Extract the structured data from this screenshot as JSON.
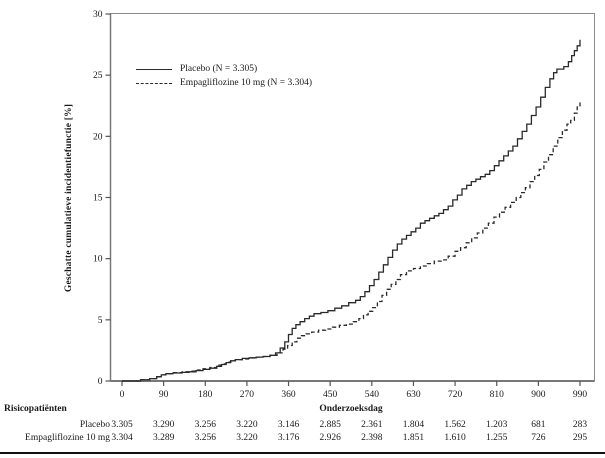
{
  "chart_data": {
    "type": "line",
    "subtype": "kaplan-meier-step",
    "title": "",
    "xlabel": "Onderzoeksdag",
    "ylabel": "Geschatte cumulatieve incidentiefunctie [%]",
    "xlim": [
      0,
      990
    ],
    "ylim": [
      0,
      30
    ],
    "xticks": [
      0,
      90,
      180,
      270,
      360,
      450,
      540,
      630,
      720,
      810,
      900,
      990
    ],
    "yticks": [
      0,
      5,
      10,
      15,
      20,
      25,
      30
    ],
    "grid": false,
    "legend_position": "inside-top-left",
    "series": [
      {
        "id": "placebo-curve",
        "name": "Placebo (N = 3.305)",
        "style": "solid",
        "points": [
          [
            0,
            0
          ],
          [
            40,
            0.1
          ],
          [
            60,
            0.2
          ],
          [
            75,
            0.35
          ],
          [
            85,
            0.5
          ],
          [
            95,
            0.6
          ],
          [
            110,
            0.65
          ],
          [
            130,
            0.7
          ],
          [
            145,
            0.75
          ],
          [
            160,
            0.85
          ],
          [
            175,
            0.95
          ],
          [
            190,
            1.05
          ],
          [
            205,
            1.2
          ],
          [
            215,
            1.35
          ],
          [
            225,
            1.5
          ],
          [
            235,
            1.65
          ],
          [
            245,
            1.75
          ],
          [
            260,
            1.85
          ],
          [
            275,
            1.9
          ],
          [
            290,
            1.95
          ],
          [
            305,
            2.0
          ],
          [
            320,
            2.1
          ],
          [
            332,
            2.3
          ],
          [
            342,
            2.7
          ],
          [
            352,
            3.2
          ],
          [
            360,
            3.8
          ],
          [
            368,
            4.3
          ],
          [
            376,
            4.6
          ],
          [
            385,
            4.85
          ],
          [
            395,
            5.1
          ],
          [
            405,
            5.3
          ],
          [
            415,
            5.5
          ],
          [
            430,
            5.6
          ],
          [
            445,
            5.75
          ],
          [
            460,
            5.95
          ],
          [
            475,
            6.15
          ],
          [
            490,
            6.4
          ],
          [
            505,
            6.6
          ],
          [
            515,
            6.9
          ],
          [
            525,
            7.3
          ],
          [
            535,
            7.8
          ],
          [
            545,
            8.3
          ],
          [
            555,
            8.9
          ],
          [
            565,
            9.5
          ],
          [
            575,
            10.1
          ],
          [
            585,
            10.7
          ],
          [
            595,
            11.2
          ],
          [
            605,
            11.6
          ],
          [
            615,
            11.9
          ],
          [
            625,
            12.2
          ],
          [
            635,
            12.5
          ],
          [
            645,
            12.9
          ],
          [
            655,
            13.1
          ],
          [
            665,
            13.3
          ],
          [
            675,
            13.5
          ],
          [
            685,
            13.7
          ],
          [
            695,
            14.0
          ],
          [
            705,
            14.3
          ],
          [
            715,
            14.8
          ],
          [
            725,
            15.2
          ],
          [
            735,
            15.7
          ],
          [
            745,
            16.0
          ],
          [
            755,
            16.3
          ],
          [
            765,
            16.5
          ],
          [
            775,
            16.7
          ],
          [
            785,
            16.9
          ],
          [
            795,
            17.2
          ],
          [
            805,
            17.6
          ],
          [
            815,
            18.0
          ],
          [
            825,
            18.4
          ],
          [
            835,
            18.8
          ],
          [
            845,
            19.2
          ],
          [
            855,
            19.8
          ],
          [
            865,
            20.4
          ],
          [
            875,
            21.0
          ],
          [
            885,
            21.7
          ],
          [
            895,
            22.4
          ],
          [
            905,
            23.2
          ],
          [
            915,
            24.0
          ],
          [
            925,
            24.7
          ],
          [
            933,
            25.2
          ],
          [
            940,
            25.5
          ],
          [
            955,
            25.7
          ],
          [
            965,
            26.1
          ],
          [
            972,
            26.6
          ],
          [
            978,
            27.0
          ],
          [
            984,
            27.4
          ],
          [
            990,
            27.9
          ]
        ]
      },
      {
        "id": "empagliflozine-curve",
        "name": "Empagliflozine 10 mg (N = 3.304)",
        "style": "dashed",
        "points": [
          [
            0,
            0
          ],
          [
            40,
            0.1
          ],
          [
            60,
            0.2
          ],
          [
            75,
            0.35
          ],
          [
            85,
            0.5
          ],
          [
            95,
            0.6
          ],
          [
            110,
            0.68
          ],
          [
            130,
            0.75
          ],
          [
            145,
            0.8
          ],
          [
            160,
            0.9
          ],
          [
            175,
            1.0
          ],
          [
            190,
            1.1
          ],
          [
            205,
            1.3
          ],
          [
            215,
            1.4
          ],
          [
            225,
            1.55
          ],
          [
            235,
            1.65
          ],
          [
            245,
            1.75
          ],
          [
            260,
            1.8
          ],
          [
            275,
            1.88
          ],
          [
            290,
            1.95
          ],
          [
            305,
            2.0
          ],
          [
            320,
            2.1
          ],
          [
            335,
            2.3
          ],
          [
            348,
            2.6
          ],
          [
            358,
            2.9
          ],
          [
            368,
            3.2
          ],
          [
            378,
            3.5
          ],
          [
            388,
            3.7
          ],
          [
            398,
            3.85
          ],
          [
            410,
            4.0
          ],
          [
            425,
            4.15
          ],
          [
            440,
            4.25
          ],
          [
            455,
            4.4
          ],
          [
            470,
            4.55
          ],
          [
            485,
            4.65
          ],
          [
            500,
            4.85
          ],
          [
            512,
            5.1
          ],
          [
            522,
            5.4
          ],
          [
            532,
            5.7
          ],
          [
            542,
            6.0
          ],
          [
            552,
            6.5
          ],
          [
            562,
            7.0
          ],
          [
            572,
            7.5
          ],
          [
            582,
            7.9
          ],
          [
            592,
            8.3
          ],
          [
            602,
            8.7
          ],
          [
            615,
            9.0
          ],
          [
            630,
            9.2
          ],
          [
            645,
            9.4
          ],
          [
            660,
            9.6
          ],
          [
            675,
            9.8
          ],
          [
            690,
            9.9
          ],
          [
            705,
            10.2
          ],
          [
            720,
            10.6
          ],
          [
            732,
            10.9
          ],
          [
            744,
            11.3
          ],
          [
            756,
            11.7
          ],
          [
            768,
            12.1
          ],
          [
            780,
            12.5
          ],
          [
            792,
            12.9
          ],
          [
            804,
            13.4
          ],
          [
            816,
            13.8
          ],
          [
            828,
            14.2
          ],
          [
            840,
            14.6
          ],
          [
            852,
            15.0
          ],
          [
            862,
            15.4
          ],
          [
            872,
            15.8
          ],
          [
            882,
            16.3
          ],
          [
            892,
            16.8
          ],
          [
            902,
            17.3
          ],
          [
            912,
            17.9
          ],
          [
            922,
            18.5
          ],
          [
            932,
            19.2
          ],
          [
            942,
            19.9
          ],
          [
            952,
            20.5
          ],
          [
            962,
            21.0
          ],
          [
            970,
            21.3
          ],
          [
            978,
            21.9
          ],
          [
            984,
            22.4
          ],
          [
            990,
            22.9
          ]
        ]
      }
    ]
  },
  "legend": {
    "items": [
      {
        "label": "Placebo (N = 3.305)",
        "style": "solid"
      },
      {
        "label": "Empagliflozine 10 mg (N = 3.304)",
        "style": "dashed"
      }
    ]
  },
  "risk_table": {
    "title": "Risicopatiënten",
    "rows": [
      {
        "label": "Placebo",
        "values": [
          "3.305",
          "3.290",
          "3.256",
          "3.220",
          "3.146",
          "2.885",
          "2.361",
          "1.804",
          "1.562",
          "1.203",
          "681",
          "283"
        ]
      },
      {
        "label": "Empagliflozine 10 mg",
        "values": [
          "3.304",
          "3.289",
          "3.256",
          "3.220",
          "3.176",
          "2.926",
          "2.398",
          "1.851",
          "1.610",
          "1.255",
          "726",
          "295"
        ]
      }
    ]
  },
  "colors": {
    "curve": "#2a2a2a",
    "frame": "#8c8c8c",
    "axis": "#787878",
    "tick": "#555555",
    "text": "#1a1a1a"
  }
}
